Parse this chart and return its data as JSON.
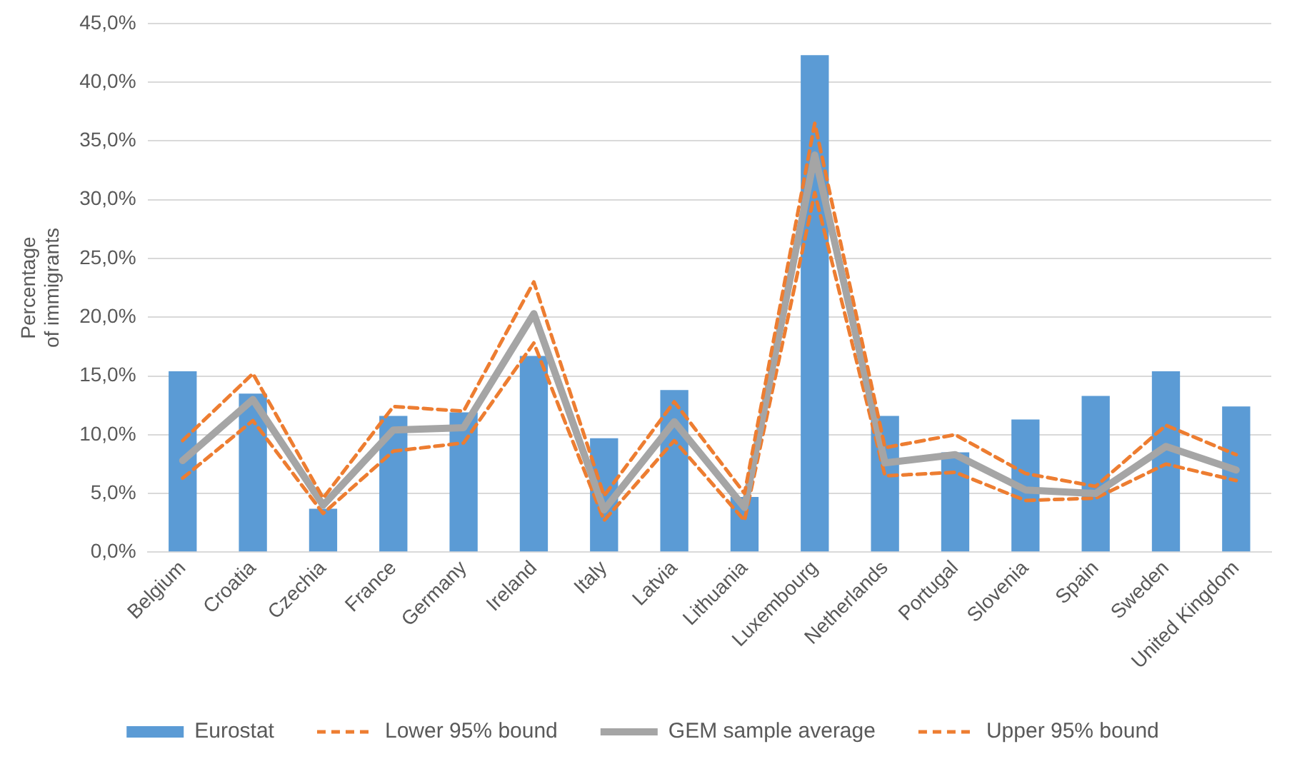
{
  "chart_data": {
    "type": "bar",
    "ylabel": "Percentage\nof immigrants",
    "categories": [
      "Belgium",
      "Croatia",
      "Czechia",
      "France",
      "Germany",
      "Ireland",
      "Italy",
      "Latvia",
      "Lithuania",
      "Luxembourg",
      "Netherlands",
      "Portugal",
      "Slovenia",
      "Spain",
      "Sweden",
      "United Kingdom"
    ],
    "series": [
      {
        "name": "Eurostat",
        "color": "#5b9bd5",
        "values": [
          15.4,
          13.5,
          3.7,
          11.6,
          11.9,
          16.7,
          9.7,
          13.8,
          4.7,
          42.3,
          11.6,
          8.5,
          11.3,
          13.3,
          15.4,
          12.4
        ]
      },
      {
        "name": "Lower 95% bound",
        "type": "line",
        "line_style": "dashed",
        "color": "#ed7d31",
        "values": [
          6.3,
          11.2,
          3.3,
          8.6,
          9.3,
          17.8,
          2.7,
          9.5,
          2.7,
          30.6,
          6.5,
          6.8,
          4.4,
          4.6,
          7.5,
          6.1
        ]
      },
      {
        "name": "GEM sample average",
        "type": "line",
        "line_style": "solid",
        "color": "#a5a5a5",
        "values": [
          7.8,
          13.0,
          4.0,
          10.4,
          10.6,
          20.3,
          3.6,
          11.1,
          3.8,
          33.8,
          7.6,
          8.3,
          5.3,
          5.0,
          9.0,
          7.0
        ]
      },
      {
        "name": "Upper 95% bound",
        "type": "line",
        "line_style": "dashed",
        "color": "#ed7d31",
        "values": [
          9.5,
          15.2,
          4.6,
          12.4,
          12.0,
          23.0,
          4.8,
          12.8,
          5.0,
          36.5,
          8.9,
          10.0,
          6.7,
          5.6,
          10.8,
          8.3
        ]
      }
    ],
    "ylim": [
      0,
      45
    ],
    "yticks": [
      {
        "value": 0,
        "label": "0,0%"
      },
      {
        "value": 5,
        "label": "5,0%"
      },
      {
        "value": 10,
        "label": "10,0%"
      },
      {
        "value": 15,
        "label": "15,0%"
      },
      {
        "value": 20,
        "label": "20,0%"
      },
      {
        "value": 25,
        "label": "25,0%"
      },
      {
        "value": 30,
        "label": "30,0%"
      },
      {
        "value": 35,
        "label": "35,0%"
      },
      {
        "value": 40,
        "label": "40,0%"
      },
      {
        "value": 45,
        "label": "45,0%"
      }
    ],
    "grid": "y",
    "legend": "bottom",
    "marker": "none"
  }
}
